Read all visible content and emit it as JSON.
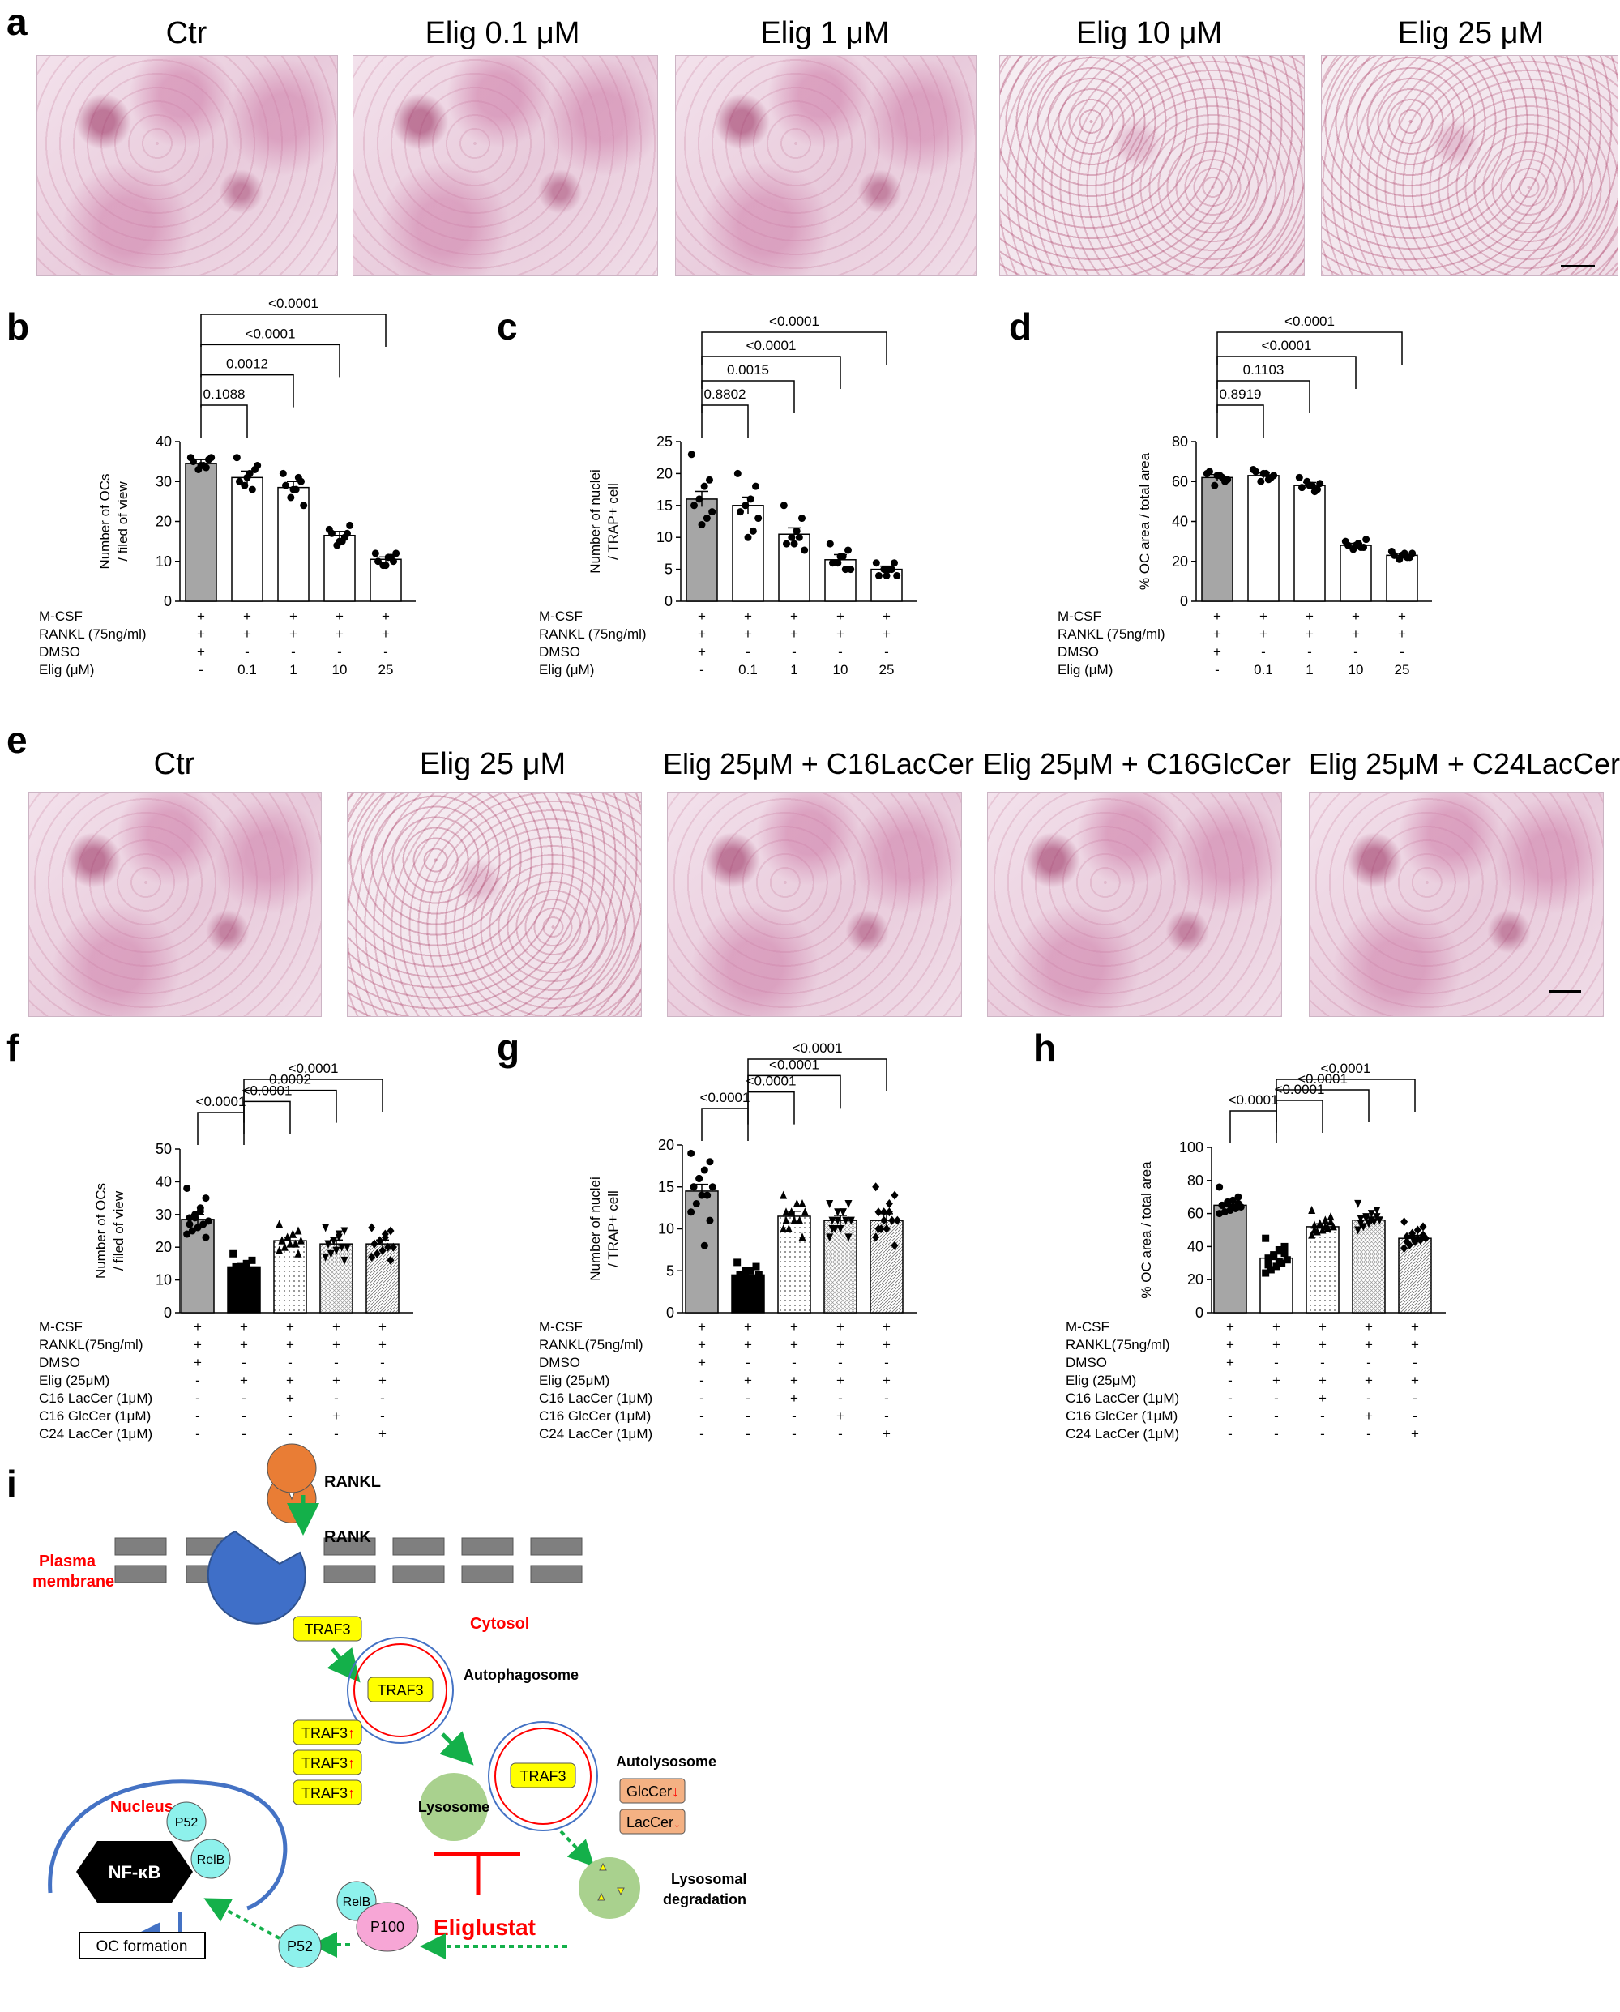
{
  "panels": {
    "a": "a",
    "b": "b",
    "c": "c",
    "d": "d",
    "e": "e",
    "f": "f",
    "g": "g",
    "h": "h",
    "i": "i"
  },
  "panel_a_titles": [
    "Ctr",
    "Elig 0.1 μM",
    "Elig 1 μM",
    "Elig 10 μM",
    "Elig 25 μM"
  ],
  "panel_e_titles": [
    "Ctr",
    "Elig 25 μM",
    "Elig 25μM + C16LacCer",
    "Elig 25μM + C16GlcCer",
    "Elig 25μM + C24LacCer"
  ],
  "row1_conditions": {
    "labels": [
      "M-CSF",
      "RANKL (75ng/ml)",
      "DMSO",
      "Elig (μM)"
    ],
    "values": [
      [
        "+",
        "+",
        "+",
        "+",
        "+"
      ],
      [
        "+",
        "+",
        "+",
        "+",
        "+"
      ],
      [
        "+",
        "-",
        "-",
        "-",
        "-"
      ],
      [
        "-",
        "0.1",
        "1",
        "10",
        "25"
      ]
    ]
  },
  "row2_conditions": {
    "labels": [
      "M-CSF",
      "RANKL(75ng/ml)",
      "DMSO",
      "Elig (25μM)",
      "C16 LacCer (1μM)",
      "C16 GlcCer (1μM)",
      "C24 LacCer (1μM)"
    ],
    "values": [
      [
        "+",
        "+",
        "+",
        "+",
        "+"
      ],
      [
        "+",
        "+",
        "+",
        "+",
        "+"
      ],
      [
        "+",
        "-",
        "-",
        "-",
        "-"
      ],
      [
        "-",
        "+",
        "+",
        "+",
        "+"
      ],
      [
        "-",
        "-",
        "+",
        "-",
        "-"
      ],
      [
        "-",
        "-",
        "-",
        "+",
        "-"
      ],
      [
        "-",
        "-",
        "-",
        "-",
        "+"
      ]
    ]
  },
  "chart_data": [
    {
      "panel": "b",
      "type": "bar",
      "ylabel_lines": [
        "Number of OCs",
        "/ filed of view"
      ],
      "ylim": [
        0,
        40
      ],
      "yticks": [
        0,
        10,
        20,
        30,
        40
      ],
      "values": [
        34.5,
        31,
        28.5,
        16.5,
        10.5
      ],
      "sem": [
        1,
        1.6,
        1.5,
        1,
        0.6
      ],
      "points": [
        [
          36,
          35.5,
          34,
          33,
          35,
          36,
          33.5,
          34
        ],
        [
          36,
          33,
          32,
          29,
          30,
          34,
          28,
          31
        ],
        [
          32,
          30,
          28,
          26,
          29,
          24,
          31,
          28
        ],
        [
          18,
          17,
          15,
          14,
          17,
          19,
          16,
          15
        ],
        [
          12,
          10,
          11,
          9,
          10,
          12,
          11,
          9
        ]
      ],
      "fills": [
        "gray",
        "white",
        "white",
        "white",
        "white"
      ],
      "markers": [
        "circle",
        "circle",
        "circle",
        "circle",
        "circle"
      ],
      "brackets": [
        {
          "a": 0,
          "b": 1,
          "label": "0.1088"
        },
        {
          "a": 0,
          "b": 2,
          "label": "0.0012"
        },
        {
          "a": 0,
          "b": 3,
          "label": "<0.0001"
        },
        {
          "a": 0,
          "b": 4,
          "label": "<0.0001"
        }
      ]
    },
    {
      "panel": "c",
      "type": "bar",
      "ylabel_lines": [
        "Number of nuclei",
        "/ TRAP+ cell"
      ],
      "ylim": [
        0,
        25
      ],
      "yticks": [
        0,
        5,
        10,
        15,
        20,
        25
      ],
      "values": [
        16,
        15,
        10.5,
        6.5,
        5
      ],
      "sem": [
        1.2,
        1.3,
        1,
        0.8,
        0.5
      ],
      "points": [
        [
          23,
          19,
          18,
          16,
          15,
          14,
          13,
          12
        ],
        [
          20,
          18,
          16,
          15,
          14,
          13,
          11,
          10
        ],
        [
          15,
          13,
          11,
          10,
          9,
          8,
          10,
          9
        ],
        [
          9,
          8,
          7,
          6,
          6,
          5,
          5,
          7
        ],
        [
          6,
          6,
          5,
          5,
          4,
          4,
          5,
          4
        ]
      ],
      "fills": [
        "gray",
        "white",
        "white",
        "white",
        "white"
      ],
      "markers": [
        "circle",
        "circle",
        "circle",
        "circle",
        "circle"
      ],
      "brackets": [
        {
          "a": 0,
          "b": 1,
          "label": "0.8802"
        },
        {
          "a": 0,
          "b": 2,
          "label": "0.0015"
        },
        {
          "a": 0,
          "b": 3,
          "label": "<0.0001"
        },
        {
          "a": 0,
          "b": 4,
          "label": "<0.0001"
        }
      ]
    },
    {
      "panel": "d",
      "type": "bar",
      "ylabel_lines": [
        "% OC area / total area"
      ],
      "ylim": [
        0,
        80
      ],
      "yticks": [
        0,
        20,
        40,
        60,
        80
      ],
      "values": [
        62,
        63,
        58,
        28,
        23
      ],
      "sem": [
        1.5,
        1.5,
        1.5,
        1,
        1
      ],
      "points": [
        [
          64,
          60,
          63,
          58,
          65,
          61,
          62,
          63
        ],
        [
          66,
          62,
          64,
          60,
          65,
          63,
          61,
          64
        ],
        [
          62,
          56,
          58,
          60,
          57,
          59,
          55,
          58
        ],
        [
          30,
          27,
          29,
          26,
          28,
          31,
          27,
          28
        ],
        [
          25,
          22,
          24,
          21,
          23,
          24,
          22,
          23
        ]
      ],
      "fills": [
        "gray",
        "white",
        "white",
        "white",
        "white"
      ],
      "markers": [
        "circle",
        "circle",
        "circle",
        "circle",
        "circle"
      ],
      "brackets": [
        {
          "a": 0,
          "b": 1,
          "label": "0.8919"
        },
        {
          "a": 0,
          "b": 2,
          "label": "0.1103"
        },
        {
          "a": 0,
          "b": 3,
          "label": "<0.0001"
        },
        {
          "a": 0,
          "b": 4,
          "label": "<0.0001"
        }
      ]
    },
    {
      "panel": "f",
      "type": "bar",
      "ylabel_lines": [
        "Number of OCs",
        "/ filed of view"
      ],
      "ylim": [
        0,
        50
      ],
      "yticks": [
        0,
        10,
        20,
        30,
        40,
        50
      ],
      "values": [
        28.5,
        14,
        22,
        21,
        21
      ],
      "sem": [
        1.5,
        1,
        1,
        1.2,
        1.2
      ],
      "points": [
        [
          38,
          35,
          32,
          30,
          29,
          28,
          27,
          26,
          25,
          24,
          23,
          31,
          29,
          27
        ],
        [
          18,
          16,
          15,
          14,
          14,
          13,
          13,
          12,
          12,
          11,
          10,
          15,
          14,
          13
        ],
        [
          27,
          25,
          24,
          23,
          22,
          22,
          21,
          21,
          20,
          19,
          18,
          24,
          23,
          22
        ],
        [
          26,
          25,
          24,
          22,
          21,
          20,
          20,
          19,
          18,
          17,
          16,
          23,
          22,
          21
        ],
        [
          26,
          25,
          24,
          22,
          21,
          20,
          20,
          19,
          18,
          17,
          16,
          23,
          22,
          21
        ]
      ],
      "fills": [
        "gray",
        "black",
        "dots",
        "grid",
        "hatch"
      ],
      "markers": [
        "circle",
        "square",
        "triangle",
        "triangle-down",
        "diamond"
      ],
      "brackets": [
        {
          "a": 0,
          "b": 1,
          "label": "<0.0001"
        },
        {
          "a": 1,
          "b": 2,
          "label": "<0.0001"
        },
        {
          "a": 1,
          "b": 3,
          "label": "0.0002"
        },
        {
          "a": 1,
          "b": 4,
          "label": "<0.0001"
        }
      ]
    },
    {
      "panel": "g",
      "type": "bar",
      "ylabel_lines": [
        "Number of nuclei",
        "/ TRAP+ cell"
      ],
      "ylim": [
        0,
        20
      ],
      "yticks": [
        0,
        5,
        10,
        15,
        20
      ],
      "values": [
        14.5,
        4.5,
        11.5,
        11,
        11
      ],
      "sem": [
        0.8,
        0.4,
        0.6,
        0.6,
        0.8
      ],
      "points": [
        [
          19,
          18,
          17,
          16,
          15,
          15,
          14,
          14,
          13,
          12,
          11,
          8,
          16,
          15
        ],
        [
          6,
          5.5,
          5,
          5,
          4.5,
          4.5,
          4,
          4,
          3.5,
          3.5,
          3,
          5,
          4.5,
          4
        ],
        [
          14,
          13,
          13,
          12,
          12,
          12,
          11,
          11,
          10,
          10,
          9,
          13,
          12,
          11
        ],
        [
          13,
          13,
          12,
          12,
          11,
          11,
          11,
          10,
          10,
          9,
          9,
          12,
          11,
          10
        ],
        [
          15,
          14,
          13,
          12,
          12,
          11,
          11,
          10,
          10,
          9,
          8,
          12,
          11,
          10
        ]
      ],
      "fills": [
        "gray",
        "black",
        "dots",
        "grid",
        "hatch"
      ],
      "markers": [
        "circle",
        "square",
        "triangle",
        "triangle-down",
        "diamond"
      ],
      "brackets": [
        {
          "a": 0,
          "b": 1,
          "label": "<0.0001"
        },
        {
          "a": 1,
          "b": 2,
          "label": "<0.0001"
        },
        {
          "a": 1,
          "b": 3,
          "label": "<0.0001"
        },
        {
          "a": 1,
          "b": 4,
          "label": "<0.0001"
        }
      ]
    },
    {
      "panel": "h",
      "type": "bar",
      "ylabel_lines": [
        "% OC area / total area"
      ],
      "ylim": [
        0,
        100
      ],
      "yticks": [
        0,
        20,
        40,
        60,
        80,
        100
      ],
      "values": [
        65,
        33,
        52,
        56,
        45
      ],
      "sem": [
        1.5,
        2.5,
        1.8,
        1.8,
        1.8
      ],
      "points": [
        [
          76,
          70,
          68,
          66,
          65,
          64,
          63,
          62,
          61,
          60,
          66,
          64,
          67,
          65
        ],
        [
          45,
          40,
          38,
          35,
          33,
          32,
          30,
          28,
          26,
          24,
          36,
          31,
          34,
          29
        ],
        [
          62,
          58,
          56,
          54,
          53,
          52,
          51,
          50,
          49,
          47,
          55,
          52,
          53,
          50
        ],
        [
          66,
          62,
          60,
          58,
          57,
          56,
          55,
          54,
          52,
          50,
          58,
          56,
          57,
          54
        ],
        [
          55,
          52,
          50,
          48,
          46,
          45,
          44,
          43,
          41,
          39,
          47,
          45,
          46,
          43
        ]
      ],
      "fills": [
        "gray",
        "white",
        "dots",
        "grid",
        "hatch"
      ],
      "markers": [
        "circle",
        "square",
        "triangle",
        "triangle-down",
        "diamond"
      ],
      "brackets": [
        {
          "a": 0,
          "b": 1,
          "label": "<0.0001"
        },
        {
          "a": 1,
          "b": 2,
          "label": "<0.0001"
        },
        {
          "a": 1,
          "b": 3,
          "label": "<0.0001"
        },
        {
          "a": 1,
          "b": 4,
          "label": "<0.0001"
        }
      ]
    }
  ],
  "diagram": {
    "rankl": "RANKL",
    "rank": "RANK",
    "plasma_membrane": [
      "Plasma",
      "membrane"
    ],
    "cytosol": "Cytosol",
    "traf3": "TRAF3",
    "autophagosome": "Autophagosome",
    "autolysosome": "Autolysosome",
    "lysosome": "Lysosome",
    "glccer": "GlcCer",
    "laccer": "LacCer",
    "lysosomal_degradation": [
      "Lysosomal",
      "degradation"
    ],
    "nucleus": "Nucleus",
    "nfkb": "NF-κB",
    "p52": "P52",
    "relb": "RelB",
    "p100": "P100",
    "eliglustat": "Eliglustat",
    "oc_formation": "OC formation",
    "up_arrow": "↑",
    "down_arrow": "↓",
    "colors": {
      "rankl": "#e97d35",
      "rank": "#3f6fc8",
      "traf3": "#ffff00",
      "lysosome": "#a9d18e",
      "protein": "#8ef1ec",
      "p100": "#f7a6d6",
      "cer_box": "#f4b183",
      "arrow_green": "#14b04a",
      "red": "#ff0000",
      "nuc_blue": "#4472c4"
    }
  }
}
